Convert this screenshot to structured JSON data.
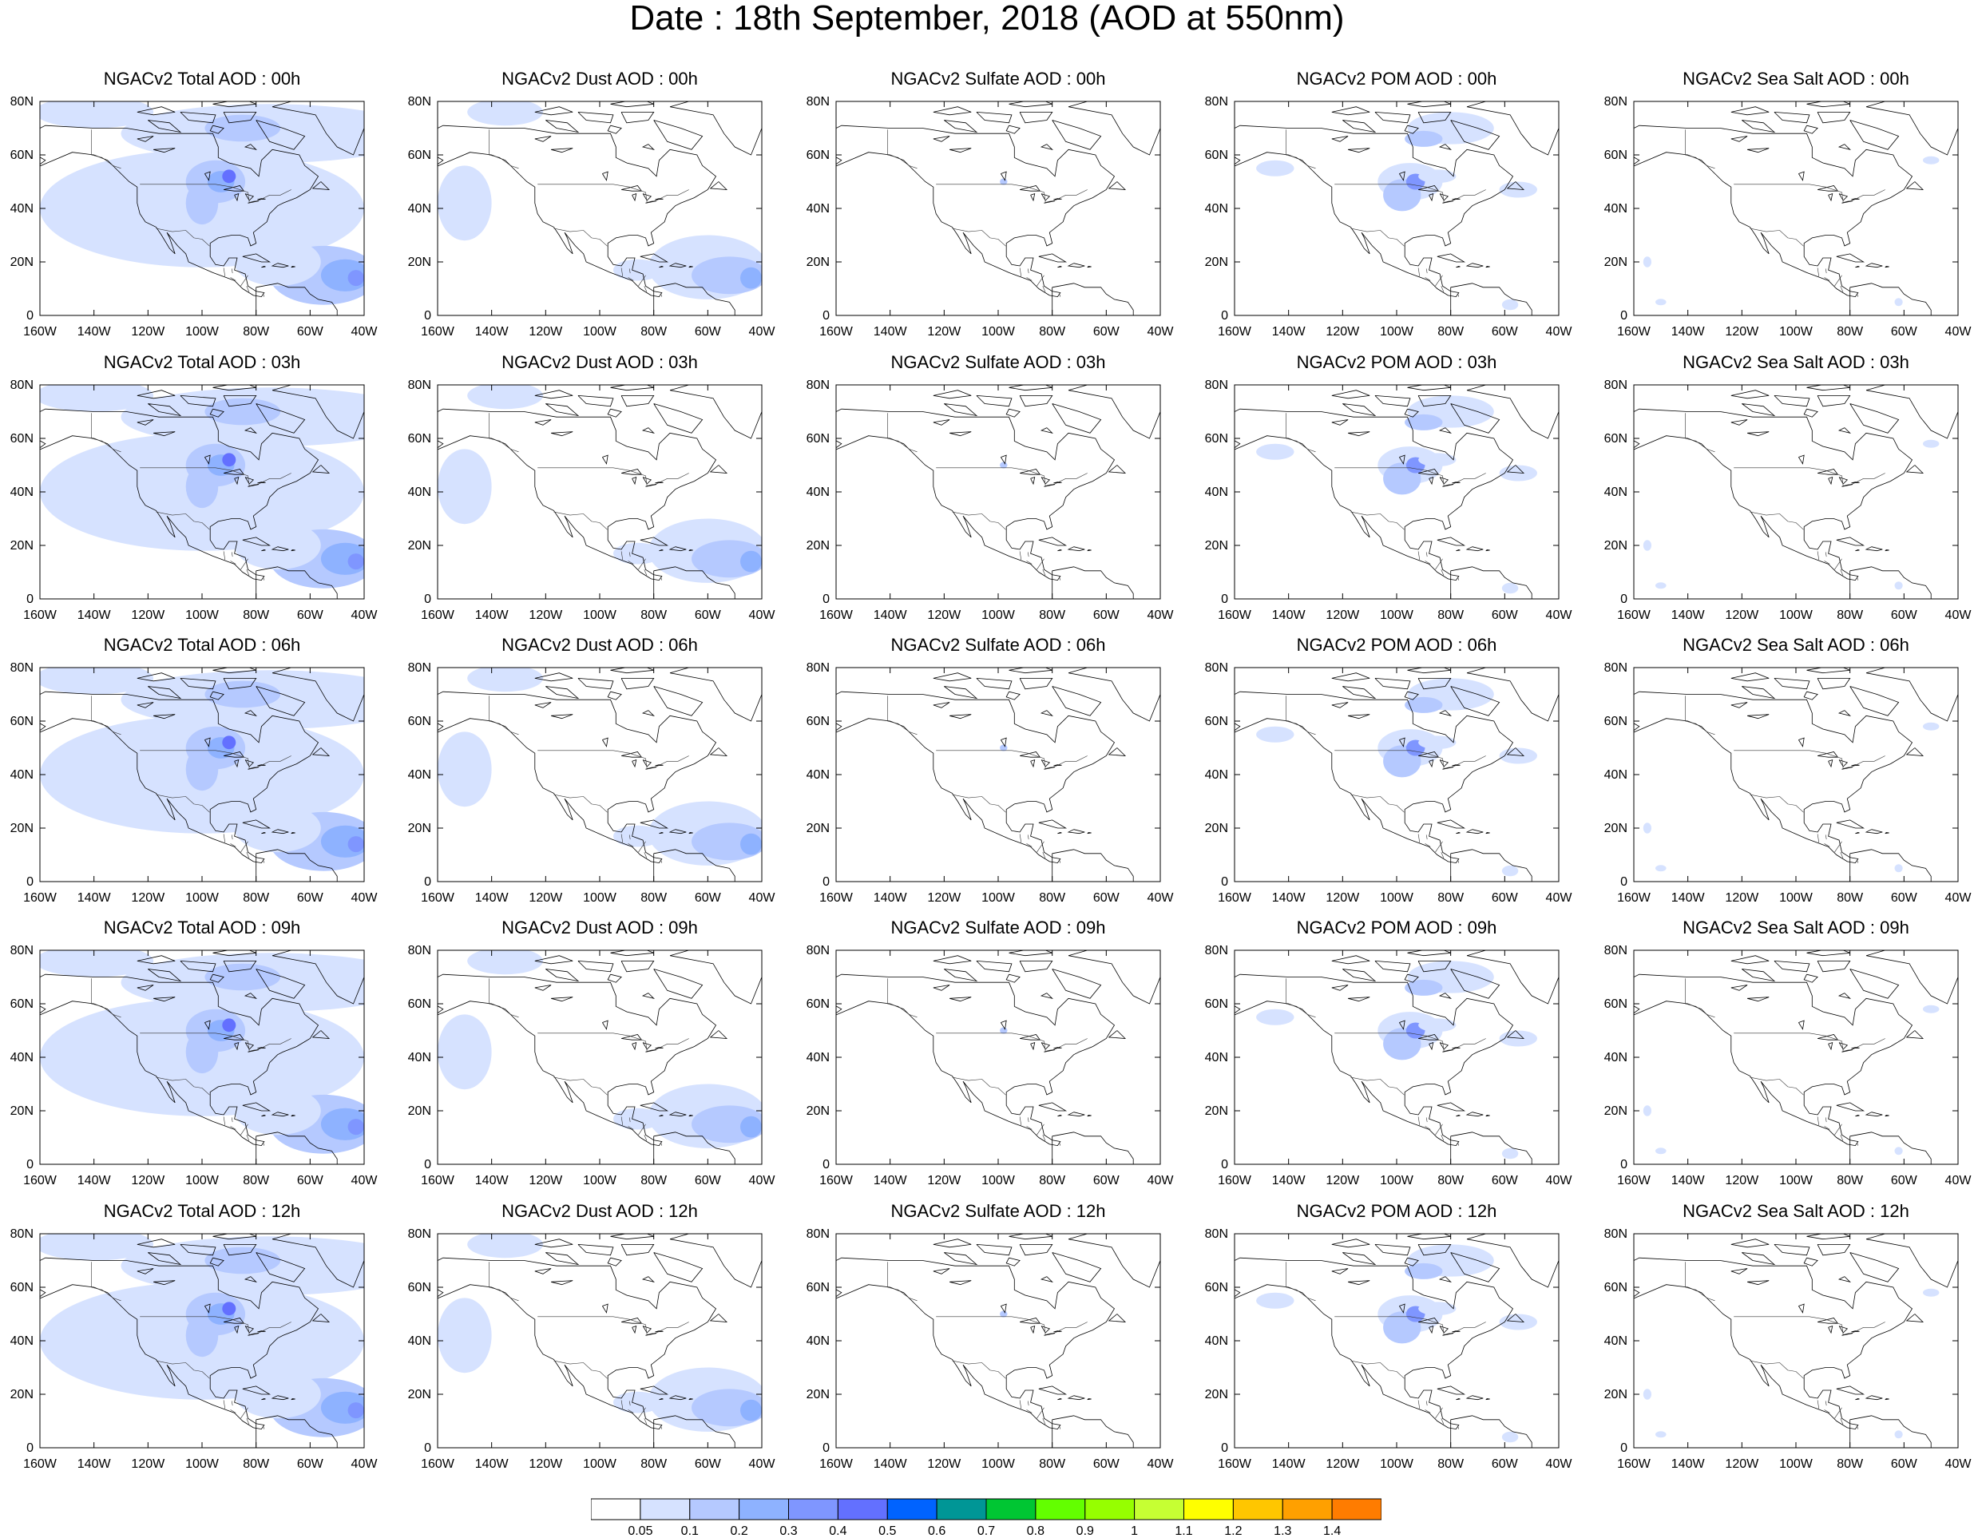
{
  "title": "Date : 18th September, 2018 (AOD at 550nm)",
  "panels": [
    [
      {
        "title": "NGACv2 Total AOD : 00h",
        "species": "total"
      },
      {
        "title": "NGACv2 Dust AOD : 00h",
        "species": "dust"
      },
      {
        "title": "NGACv2 Sulfate AOD : 00h",
        "species": "sulfate"
      },
      {
        "title": "NGACv2 POM AOD : 00h",
        "species": "pom"
      },
      {
        "title": "NGACv2 Sea Salt AOD : 00h",
        "species": "seasalt"
      }
    ],
    [
      {
        "title": "NGACv2 Total AOD : 03h",
        "species": "total"
      },
      {
        "title": "NGACv2 Dust AOD : 03h",
        "species": "dust"
      },
      {
        "title": "NGACv2 Sulfate AOD : 03h",
        "species": "sulfate"
      },
      {
        "title": "NGACv2 POM AOD : 03h",
        "species": "pom"
      },
      {
        "title": "NGACv2 Sea Salt AOD : 03h",
        "species": "seasalt"
      }
    ],
    [
      {
        "title": "NGACv2 Total AOD : 06h",
        "species": "total"
      },
      {
        "title": "NGACv2 Dust AOD : 06h",
        "species": "dust"
      },
      {
        "title": "NGACv2 Sulfate AOD : 06h",
        "species": "sulfate"
      },
      {
        "title": "NGACv2 POM AOD : 06h",
        "species": "pom"
      },
      {
        "title": "NGACv2 Sea Salt AOD : 06h",
        "species": "seasalt"
      }
    ],
    [
      {
        "title": "NGACv2 Total AOD : 09h",
        "species": "total"
      },
      {
        "title": "NGACv2 Dust AOD : 09h",
        "species": "dust"
      },
      {
        "title": "NGACv2 Sulfate AOD : 09h",
        "species": "sulfate"
      },
      {
        "title": "NGACv2 POM AOD : 09h",
        "species": "pom"
      },
      {
        "title": "NGACv2 Sea Salt  AOD : 09h",
        "species": "seasalt"
      }
    ],
    [
      {
        "title": "NGACv2 Total AOD  : 12h",
        "species": "total"
      },
      {
        "title": "NGACv2 Dust AOD : 12h",
        "species": "dust"
      },
      {
        "title": "NGACv2 Sulfate AOD : 12h",
        "species": "sulfate"
      },
      {
        "title": "NGACv2 POM  AOD : 12h",
        "species": "pom"
      },
      {
        "title": "NGACv2 Sea Salt  AOD : 12h",
        "species": "seasalt"
      }
    ]
  ],
  "lon_labels": [
    "160W",
    "140W",
    "120W",
    "100W",
    "80W",
    "60W",
    "40W"
  ],
  "lat_labels": [
    "0",
    "20N",
    "40N",
    "60N",
    "80N"
  ],
  "lon_range": [
    -160,
    -40
  ],
  "lat_range": [
    0,
    80
  ],
  "colorbar": {
    "labels": [
      "0.05",
      "0.1",
      "0.2",
      "0.3",
      "0.4",
      "0.5",
      "0.6",
      "0.7",
      "0.8",
      "0.9",
      "1",
      "1.1",
      "1.2",
      "1.3",
      "1.4"
    ],
    "colors": [
      "#ffffff",
      "#d6e2ff",
      "#b5c9ff",
      "#8eb2ff",
      "#7f96ff",
      "#6370ff",
      "#0063ff",
      "#009696",
      "#00c633",
      "#63ff00",
      "#96ff00",
      "#c6ff33",
      "#ffff00",
      "#ffc600",
      "#ffa000",
      "#ff7c00",
      "#ff1900"
    ]
  }
}
